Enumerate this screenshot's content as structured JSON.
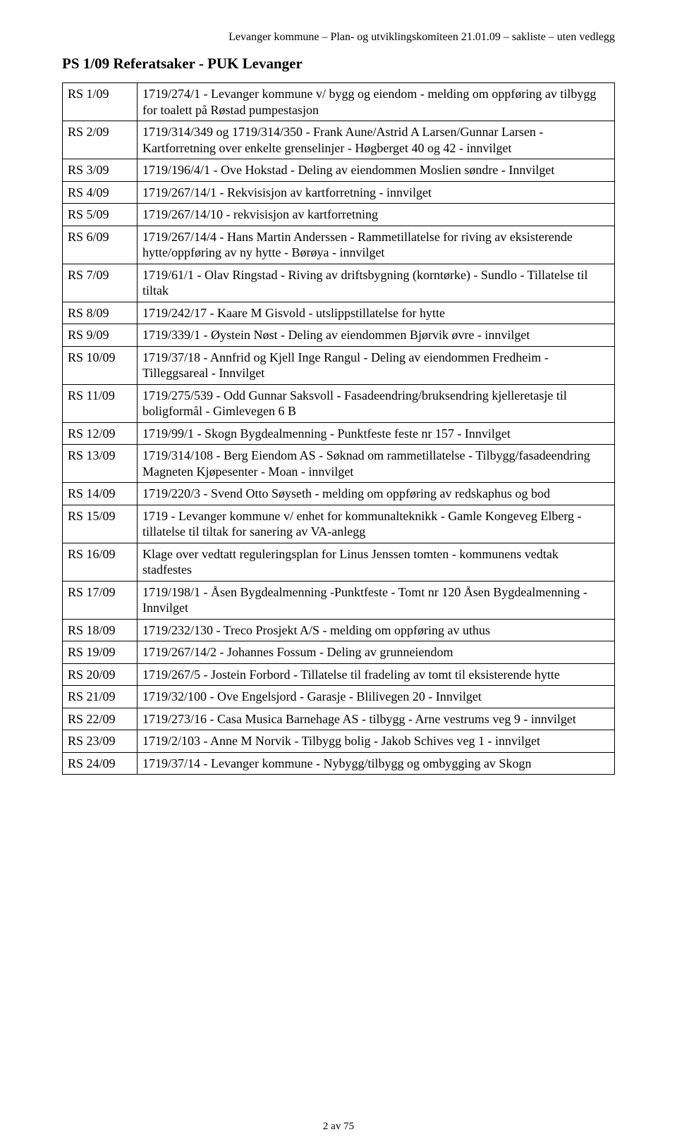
{
  "document_header": "Levanger kommune – Plan- og utviklingskomiteen 21.01.09 – sakliste – uten vedlegg",
  "title": "PS 1/09 Referatsaker - PUK Levanger",
  "page_num": "2 av 75",
  "rows": [
    {
      "id": "RS 1/09",
      "desc": "1719/274/1 - Levanger kommune v/ bygg og eiendom - melding om oppføring av tilbygg for toalett på Røstad pumpestasjon"
    },
    {
      "id": "RS 2/09",
      "desc": "1719/314/349 og 1719/314/350 - Frank Aune/Astrid A Larsen/Gunnar Larsen - Kartforretning over enkelte grenselinjer - Høgberget 40 og 42 - innvilget"
    },
    {
      "id": "RS 3/09",
      "desc": "1719/196/4/1 - Ove Hokstad - Deling av eiendommen Moslien søndre - Innvilget"
    },
    {
      "id": "RS 4/09",
      "desc": "1719/267/14/1 - Rekvisisjon av kartforretning - innvilget"
    },
    {
      "id": "RS 5/09",
      "desc": "1719/267/14/10 - rekvisisjon av kartforretning"
    },
    {
      "id": "RS 6/09",
      "desc": "1719/267/14/4 - Hans Martin Anderssen - Rammetillatelse for riving av eksisterende hytte/oppføring av ny hytte - Børøya - innvilget"
    },
    {
      "id": "RS 7/09",
      "desc": "1719/61/1 - Olav Ringstad - Riving av driftsbygning (korntørke) - Sundlo - Tillatelse til tiltak"
    },
    {
      "id": "RS 8/09",
      "desc": "1719/242/17 - Kaare M Gisvold - utslippstillatelse for hytte"
    },
    {
      "id": "RS 9/09",
      "desc": "1719/339/1 - Øystein Nøst - Deling av eiendommen Bjørvik øvre - innvilget"
    },
    {
      "id": "RS 10/09",
      "desc": "1719/37/18 - Annfrid og Kjell Inge Rangul - Deling av eiendommen Fredheim - Tilleggsareal - Innvilget"
    },
    {
      "id": "RS 11/09",
      "desc": "1719/275/539 - Odd Gunnar Saksvoll - Fasadeendring/bruksendring kjelleretasje til boligformål - Gimlevegen 6 B"
    },
    {
      "id": "RS 12/09",
      "desc": "1719/99/1 - Skogn Bygdealmenning - Punktfeste feste nr 157 - Innvilget"
    },
    {
      "id": "RS 13/09",
      "desc": "1719/314/108 - Berg Eiendom AS - Søknad om rammetillatelse - Tilbygg/fasadeendring Magneten Kjøpesenter - Moan - innvilget"
    },
    {
      "id": "RS 14/09",
      "desc": "1719/220/3 - Svend Otto Søyseth - melding om oppføring av redskaphus og bod"
    },
    {
      "id": "RS 15/09",
      "desc": "1719 -  Levanger kommune v/ enhet for kommunalteknikk - Gamle Kongeveg Elberg - tillatelse til tiltak for sanering av VA-anlegg"
    },
    {
      "id": "RS 16/09",
      "desc": "Klage over vedtatt reguleringsplan for Linus Jenssen tomten - kommunens vedtak stadfestes"
    },
    {
      "id": "RS 17/09",
      "desc": "1719/198/1 - Åsen Bygdealmenning -Punktfeste - Tomt nr 120 Åsen Bygdealmenning - Innvilget"
    },
    {
      "id": "RS 18/09",
      "desc": "1719/232/130 - Treco Prosjekt A/S - melding om oppføring av uthus"
    },
    {
      "id": "RS 19/09",
      "desc": "1719/267/14/2 - Johannes Fossum - Deling av grunneiendom"
    },
    {
      "id": "RS 20/09",
      "desc": "1719/267/5 - Jostein Forbord - Tillatelse til fradeling av tomt til eksisterende hytte"
    },
    {
      "id": "RS 21/09",
      "desc": "1719/32/100 - Ove Engelsjord - Garasje - Blilivegen 20 - Innvilget"
    },
    {
      "id": "RS 22/09",
      "desc": "1719/273/16 - Casa Musica Barnehage AS - tilbygg - Arne vestrums veg 9 - innvilget"
    },
    {
      "id": "RS 23/09",
      "desc": "1719/2/103 - Anne M Norvik - Tilbygg bolig - Jakob Schives veg 1 - innvilget"
    },
    {
      "id": "RS 24/09",
      "desc": "1719/37/14 - Levanger kommune - Nybygg/tilbygg og ombygging av Skogn"
    }
  ]
}
